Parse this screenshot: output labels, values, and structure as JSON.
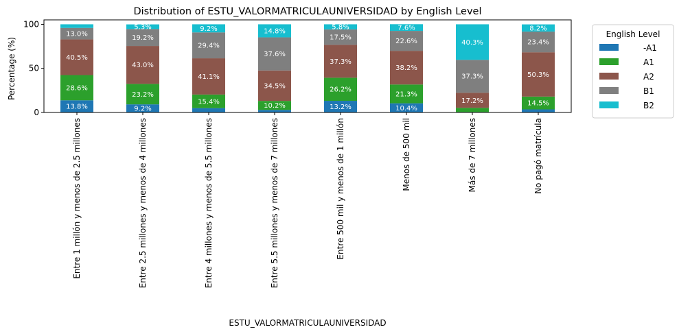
{
  "chart_data": {
    "type": "bar",
    "stacked": true,
    "title": "Distribution of ESTU_VALORMATRICULAUNIVERSIDAD by English Level",
    "xlabel": "ESTU_VALORMATRICULAUNIVERSIDAD",
    "ylabel": "Percentage (%)",
    "ylim": [
      0,
      100
    ],
    "yticks": [
      "0",
      "50",
      "100"
    ],
    "categories": [
      "Entre 1 millón y menos de 2.5 millones",
      "Entre 2.5 millones y menos de 4 millones",
      "Entre 4 millones y menos de 5.5 millones",
      "Entre 5.5 millones y menos de 7 millones",
      "Entre 500 mil y menos de 1 millón",
      "Menos de 500 mil",
      "Más de 7 millones",
      "No pagó matrícula"
    ],
    "legend_title": "English Level",
    "legend_position": "outside right",
    "series": [
      {
        "name": "-A1",
        "color": "#1f77b4",
        "values": [
          13.8,
          9.2,
          4.9,
          2.9,
          13.2,
          10.4,
          0.5,
          3.5
        ],
        "labels": [
          "13.8%",
          "9.2%",
          "",
          "",
          "13.2%",
          "10.4%",
          "",
          ""
        ]
      },
      {
        "name": "A1",
        "color": "#2ca02c",
        "values": [
          28.6,
          23.2,
          15.4,
          10.2,
          26.2,
          21.3,
          4.7,
          14.5
        ],
        "labels": [
          "28.6%",
          "23.2%",
          "15.4%",
          "10.2%",
          "26.2%",
          "21.3%",
          "",
          "14.5%"
        ]
      },
      {
        "name": "A2",
        "color": "#8c564b",
        "values": [
          40.5,
          43.0,
          41.1,
          34.5,
          37.3,
          38.2,
          17.2,
          50.3
        ],
        "labels": [
          "40.5%",
          "43.0%",
          "41.1%",
          "34.5%",
          "37.3%",
          "38.2%",
          "17.2%",
          "50.3%"
        ]
      },
      {
        "name": "B1",
        "color": "#7f7f7f",
        "values": [
          13.0,
          19.2,
          29.4,
          37.6,
          17.5,
          22.6,
          37.3,
          23.4
        ],
        "labels": [
          "13.0%",
          "19.2%",
          "29.4%",
          "37.6%",
          "17.5%",
          "22.6%",
          "37.3%",
          "23.4%"
        ]
      },
      {
        "name": "B2",
        "color": "#17becf",
        "values": [
          4.1,
          5.3,
          9.2,
          14.8,
          5.8,
          7.6,
          40.3,
          8.2
        ],
        "labels": [
          "",
          "5.3%",
          "9.2%",
          "14.8%",
          "5.8%",
          "7.6%",
          "40.3%",
          "8.2%"
        ]
      }
    ]
  }
}
